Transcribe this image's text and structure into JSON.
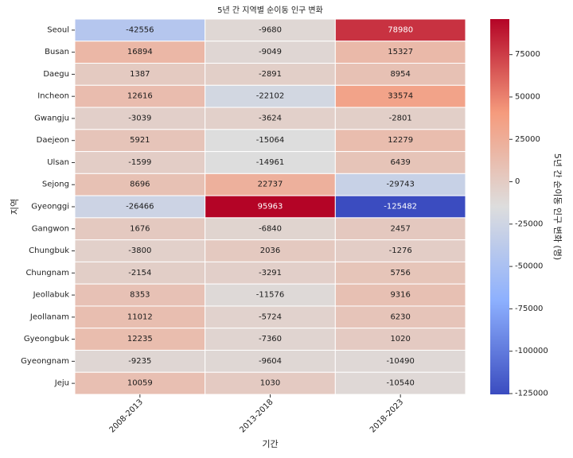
{
  "chart_data": {
    "type": "heatmap",
    "title": "5년 간 지역별 순이동 인구 변화",
    "xlabel": "기간",
    "ylabel": "지역",
    "colorbar_label": "5년 간 순이동 인구 변화 (명)",
    "colormap": "coolwarm",
    "colorbar_range": [
      -125482,
      95963
    ],
    "colorbar_ticks": [
      75000,
      50000,
      25000,
      0,
      -25000,
      -50000,
      -75000,
      -100000,
      -125000
    ],
    "x_categories": [
      "2008-2013",
      "2013-2018",
      "2018-2023"
    ],
    "y_categories": [
      "Seoul",
      "Busan",
      "Daegu",
      "Incheon",
      "Gwangju",
      "Daejeon",
      "Ulsan",
      "Sejong",
      "Gyeonggi",
      "Gangwon",
      "Chungbuk",
      "Chungnam",
      "Jeollabuk",
      "Jeollanam",
      "Gyeongbuk",
      "Gyeongnam",
      "Jeju"
    ],
    "values": [
      [
        -42556,
        -9680,
        78980
      ],
      [
        16894,
        -9049,
        15327
      ],
      [
        1387,
        -2891,
        8954
      ],
      [
        12616,
        -22102,
        33574
      ],
      [
        -3039,
        -3624,
        -2801
      ],
      [
        5921,
        -15064,
        12279
      ],
      [
        -1599,
        -14961,
        6439
      ],
      [
        8696,
        22737,
        -29743
      ],
      [
        -26466,
        95963,
        -125482
      ],
      [
        1676,
        -6840,
        2457
      ],
      [
        -3800,
        2036,
        -1276
      ],
      [
        -2154,
        -3291,
        5756
      ],
      [
        8353,
        -11576,
        9316
      ],
      [
        11012,
        -5724,
        6230
      ],
      [
        12235,
        -7360,
        1020
      ],
      [
        -9235,
        -9604,
        -10490
      ],
      [
        10059,
        1030,
        -10540
      ]
    ]
  }
}
